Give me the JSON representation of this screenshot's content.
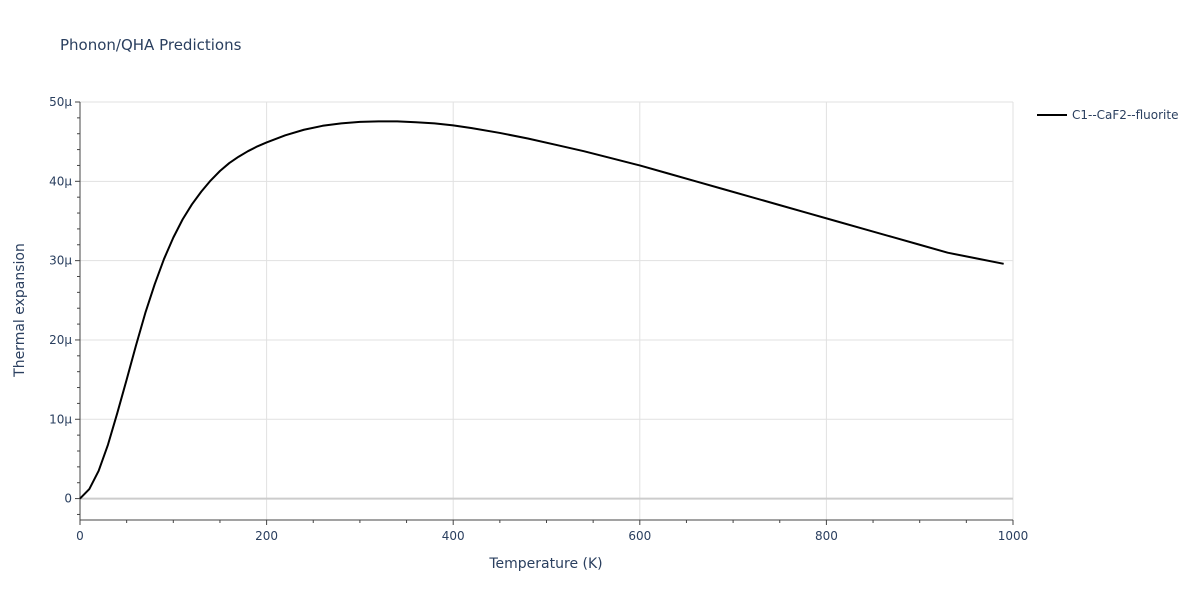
{
  "chart_data": {
    "type": "line",
    "title": "Phonon/QHA Predictions",
    "xlabel": "Temperature (K)",
    "ylabel": "Thermal expansion",
    "xlim": [
      0,
      1000
    ],
    "ylim": [
      -2.7e-06,
      5e-05
    ],
    "grid": true,
    "legend_position": "top-right",
    "x_ticks": [
      0,
      200,
      400,
      600,
      800,
      1000
    ],
    "x_tick_labels": [
      "0",
      "200",
      "400",
      "600",
      "800",
      "1000"
    ],
    "y_ticks": [
      0,
      1e-05,
      2e-05,
      3e-05,
      4e-05,
      5e-05
    ],
    "y_tick_labels": [
      "0",
      "10μ",
      "20μ",
      "30μ",
      "40μ",
      "50μ"
    ],
    "series": [
      {
        "name": "C1--CaF2--fluorite",
        "color": "#000000",
        "x": [
          0,
          10,
          20,
          30,
          40,
          50,
          60,
          70,
          80,
          90,
          100,
          110,
          120,
          130,
          140,
          150,
          160,
          170,
          180,
          190,
          200,
          220,
          240,
          260,
          280,
          300,
          320,
          340,
          360,
          380,
          400,
          420,
          450,
          480,
          510,
          540,
          570,
          600,
          630,
          660,
          690,
          720,
          750,
          780,
          810,
          840,
          870,
          900,
          930,
          960,
          990
        ],
        "y": [
          0,
          1.2e-06,
          3.5e-06,
          6.8e-06,
          1.08e-05,
          1.5e-05,
          1.93e-05,
          2.34e-05,
          2.7e-05,
          3.02e-05,
          3.29e-05,
          3.52e-05,
          3.71e-05,
          3.87e-05,
          4.01e-05,
          4.13e-05,
          4.23e-05,
          4.31e-05,
          4.38e-05,
          4.44e-05,
          4.49e-05,
          4.58e-05,
          4.65e-05,
          4.7e-05,
          4.73e-05,
          4.75e-05,
          4.755e-05,
          4.755e-05,
          4.745e-05,
          4.73e-05,
          4.705e-05,
          4.67e-05,
          4.61e-05,
          4.54e-05,
          4.46e-05,
          4.38e-05,
          4.29e-05,
          4.2e-05,
          4.1e-05,
          4e-05,
          3.9e-05,
          3.8e-05,
          3.7e-05,
          3.6e-05,
          3.5e-05,
          3.4e-05,
          3.3e-05,
          3.2e-05,
          3.1e-05,
          3.03e-05,
          2.96e-05
        ]
      }
    ]
  }
}
